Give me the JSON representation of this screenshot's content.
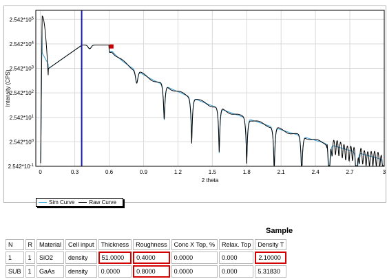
{
  "chart_data": {
    "type": "line",
    "xlabel": "2 theta",
    "ylabel": "Intensity (CPS)",
    "x_ticks": [
      "0",
      "0.3",
      "0.6",
      "0.9",
      "1.2",
      "1.5",
      "1.8",
      "2.1",
      "2.4",
      "2.7",
      "3"
    ],
    "xlim": [
      -0.04,
      3.0
    ],
    "y_scale": "log",
    "y_ticks": [
      "2.542*10^5",
      "2.542*10^4",
      "2.542*10^3",
      "2.542*10^2",
      "2.542*10^1",
      "2.542*10^0",
      "2.542*10^-1"
    ],
    "ylim": [
      0.2542,
      600000
    ],
    "cursor_x": 0.36,
    "marker": {
      "x": 0.62,
      "y": 20000,
      "color": "#cc0000"
    },
    "series": [
      {
        "name": "Sim Curve",
        "color": "#3aa0d8"
      },
      {
        "name": "Raw Curve",
        "color": "#000000"
      }
    ],
    "legend": "bottom-left",
    "grid": true
  },
  "legend": {
    "sim_label": "Sim Curve",
    "raw_label": "Raw Curve"
  },
  "table": {
    "title": "Sample",
    "headers": [
      "N",
      "R",
      "Material",
      "Cell input",
      "Thickness",
      "Roughness",
      "Conc X Top, %",
      "Relax. Top",
      "Density T"
    ],
    "rows": [
      [
        "1",
        "1",
        "SiO2",
        "density",
        "51.0000",
        "0.4000",
        "0.0000",
        "0.000",
        "2.10000"
      ],
      [
        "SUB",
        "1",
        "GaAs",
        "density",
        "0.0000",
        "0.8000",
        "0.0000",
        "0.000",
        "5.31830"
      ]
    ]
  }
}
